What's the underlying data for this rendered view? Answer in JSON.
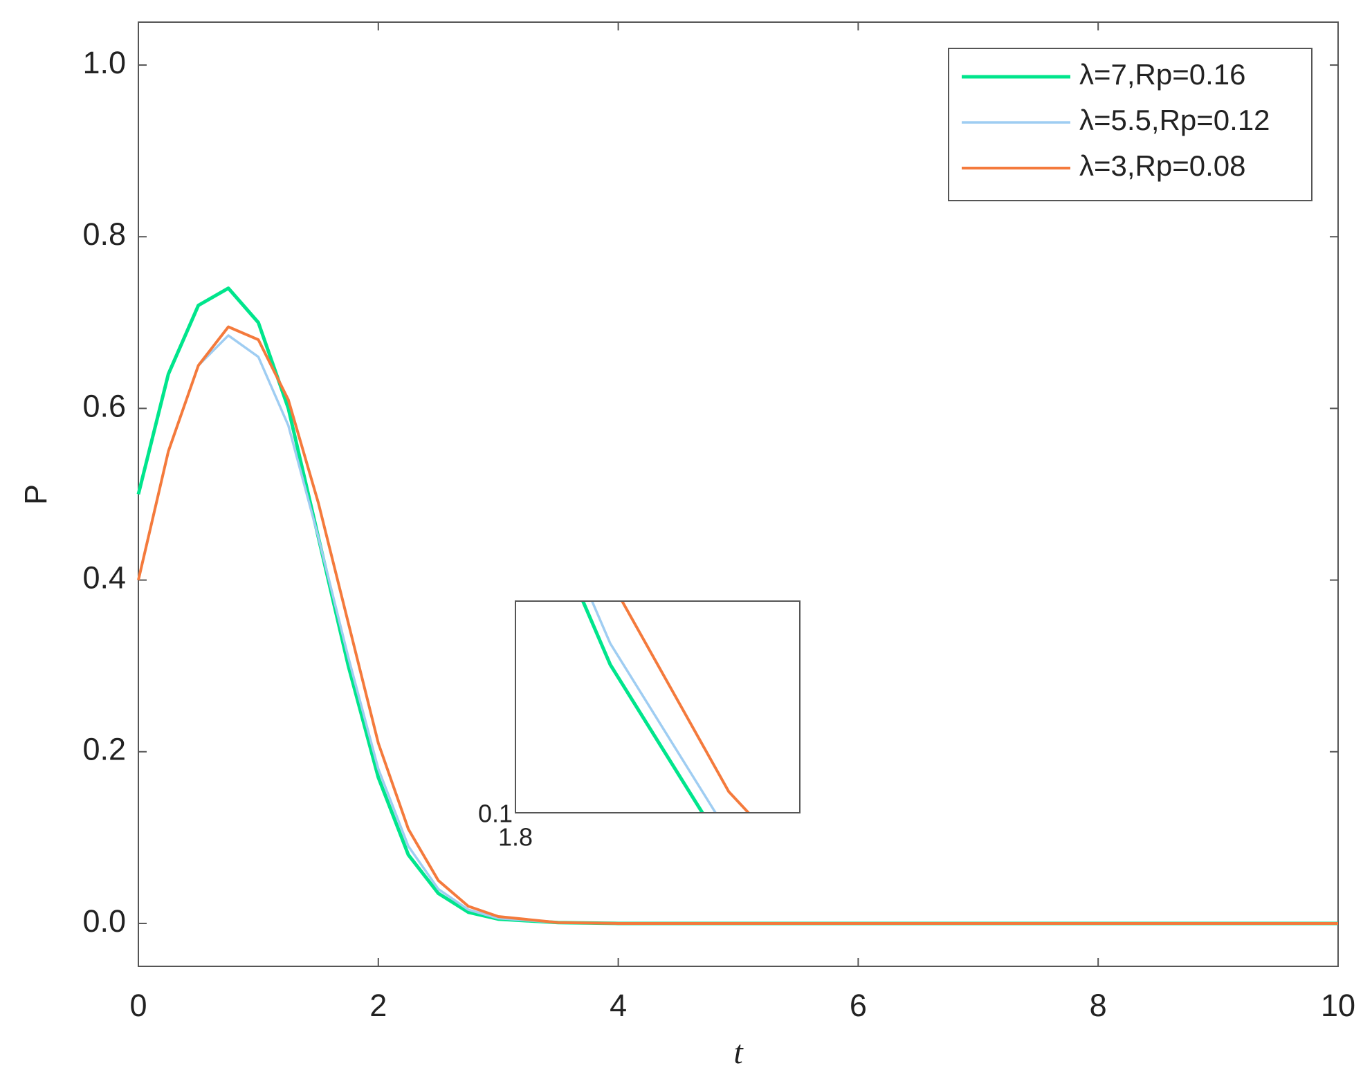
{
  "chart_data": {
    "type": "line",
    "x_label": "t",
    "y_label": "P",
    "x": [
      0,
      0.25,
      0.5,
      0.75,
      1,
      1.25,
      1.5,
      1.75,
      2,
      2.25,
      2.5,
      2.75,
      3,
      3.5,
      4,
      5,
      6,
      7,
      8,
      9,
      10
    ],
    "series": [
      {
        "name": "λ=7,Rp=0.16",
        "color": "#00e58c",
        "width": 5,
        "values": [
          0.5,
          0.64,
          0.72,
          0.74,
          0.7,
          0.6,
          0.45,
          0.3,
          0.17,
          0.08,
          0.035,
          0.013,
          0.005,
          0.001,
          0,
          0,
          0,
          0,
          0,
          0,
          0
        ]
      },
      {
        "name": "λ=5.5,Rp=0.12",
        "color": "#9fcdf2",
        "width": 3.5,
        "values": [
          0.4,
          0.55,
          0.65,
          0.685,
          0.66,
          0.58,
          0.45,
          0.31,
          0.18,
          0.09,
          0.04,
          0.016,
          0.006,
          0.001,
          0,
          0,
          0,
          0,
          0,
          0,
          0
        ]
      },
      {
        "name": "λ=3,Rp=0.08",
        "color": "#f47a3c",
        "width": 4,
        "values": [
          0.4,
          0.55,
          0.65,
          0.695,
          0.68,
          0.61,
          0.49,
          0.35,
          0.21,
          0.11,
          0.05,
          0.02,
          0.008,
          0.001,
          0,
          0,
          0,
          0,
          0,
          0,
          0
        ]
      }
    ],
    "xlim": [
      0,
      10
    ],
    "ylim": [
      -0.05,
      1.05
    ],
    "xticks": [
      0,
      2,
      4,
      6,
      8,
      10
    ],
    "yticks": [
      {
        "value": 0,
        "label": "0.0"
      },
      0.2,
      0.4,
      0.6,
      0.8,
      {
        "value": 1,
        "label": "1.0"
      }
    ],
    "legend": "upper right",
    "inset": {
      "xlim": [
        1.8,
        2.4
      ],
      "ylim": [
        0.1,
        0.2
      ],
      "xticks": [
        1.8
      ],
      "yticks": [
        0.1
      ]
    }
  }
}
